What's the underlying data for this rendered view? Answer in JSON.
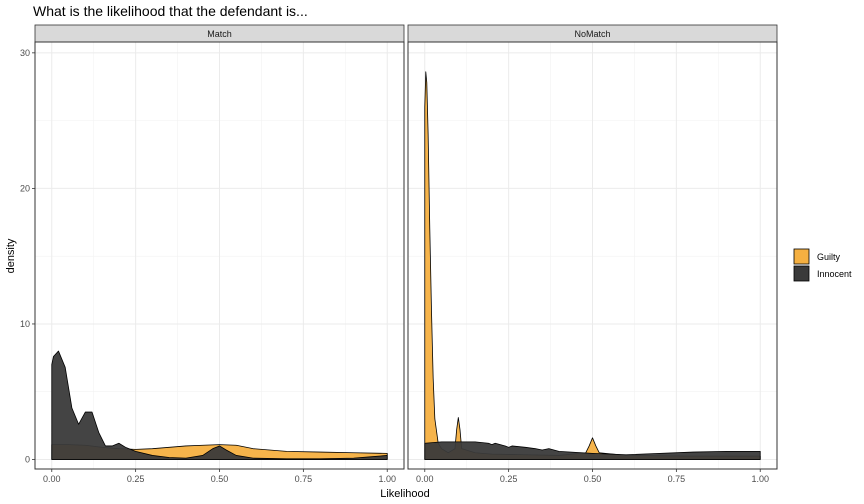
{
  "chart_data": {
    "type": "area",
    "subtype": "density",
    "title": "What is the likelihood that the defendant is...",
    "xlabel": "Likelihood",
    "ylabel": "density",
    "xlim": [
      -0.05,
      1.05
    ],
    "ylim": [
      -0.7,
      30.8
    ],
    "x_ticks": [
      0,
      0.25,
      0.5,
      0.75,
      1
    ],
    "x_tick_labels": [
      "0.00",
      "0.25",
      "0.50",
      "0.75",
      "1.00"
    ],
    "y_ticks": [
      0,
      10,
      20,
      30
    ],
    "y_tick_labels": [
      "0",
      "10",
      "20",
      "30"
    ],
    "grid": true,
    "legend_position": "right",
    "legend": [
      {
        "key": "guilty",
        "label": "Guilty",
        "color": "#F5B041"
      },
      {
        "key": "innocent",
        "label": "Innocent",
        "color": "#3A3A3A"
      }
    ],
    "panels": [
      {
        "label": "Match",
        "series": [
          {
            "name": "Guilty",
            "x": [
              0,
              0.05,
              0.1,
              0.15,
              0.2,
              0.25,
              0.3,
              0.35,
              0.4,
              0.45,
              0.5,
              0.55,
              0.6,
              0.7,
              0.8,
              0.9,
              1.0
            ],
            "y": [
              1.1,
              1.1,
              1.05,
              0.9,
              0.8,
              0.75,
              0.8,
              0.9,
              1.0,
              1.05,
              1.1,
              1.05,
              0.8,
              0.6,
              0.55,
              0.5,
              0.45
            ]
          },
          {
            "name": "Innocent",
            "x": [
              0,
              0.005,
              0.02,
              0.04,
              0.06,
              0.08,
              0.1,
              0.12,
              0.14,
              0.16,
              0.18,
              0.2,
              0.22,
              0.25,
              0.3,
              0.35,
              0.4,
              0.45,
              0.48,
              0.5,
              0.52,
              0.55,
              0.6,
              0.7,
              0.8,
              0.9,
              0.95,
              1.0
            ],
            "y": [
              7.0,
              7.6,
              8.0,
              6.8,
              3.8,
              2.6,
              3.5,
              3.5,
              2.0,
              1.0,
              1.0,
              1.2,
              0.9,
              0.6,
              0.3,
              0.15,
              0.1,
              0.3,
              0.8,
              1.0,
              0.7,
              0.3,
              0.1,
              0.05,
              0.05,
              0.1,
              0.2,
              0.3
            ]
          }
        ]
      },
      {
        "label": "NoMatch",
        "series": [
          {
            "name": "Guilty",
            "x": [
              0,
              0.003,
              0.006,
              0.01,
              0.015,
              0.02,
              0.025,
              0.03,
              0.04,
              0.05,
              0.07,
              0.09,
              0.095,
              0.1,
              0.105,
              0.11,
              0.15,
              0.2,
              0.3,
              0.4,
              0.48,
              0.49,
              0.5,
              0.51,
              0.52,
              0.6,
              0.8,
              1.0
            ],
            "y": [
              26.0,
              28.6,
              27.8,
              24.0,
              17.0,
              11.0,
              6.0,
              3.0,
              1.2,
              0.8,
              0.5,
              0.8,
              2.2,
              3.1,
              2.2,
              0.8,
              0.5,
              0.4,
              0.35,
              0.3,
              0.5,
              1.0,
              1.6,
              1.0,
              0.5,
              0.3,
              0.25,
              0.25
            ]
          },
          {
            "name": "Innocent",
            "x": [
              0,
              0.05,
              0.08,
              0.1,
              0.12,
              0.15,
              0.19,
              0.2,
              0.21,
              0.24,
              0.25,
              0.26,
              0.3,
              0.33,
              0.35,
              0.37,
              0.4,
              0.5,
              0.6,
              0.7,
              0.8,
              0.9,
              1.0
            ],
            "y": [
              1.2,
              1.3,
              1.3,
              1.3,
              1.3,
              1.3,
              1.2,
              1.1,
              1.2,
              1.0,
              0.9,
              1.0,
              0.9,
              0.8,
              0.7,
              0.8,
              0.6,
              0.45,
              0.35,
              0.45,
              0.55,
              0.6,
              0.6
            ]
          }
        ]
      }
    ]
  }
}
